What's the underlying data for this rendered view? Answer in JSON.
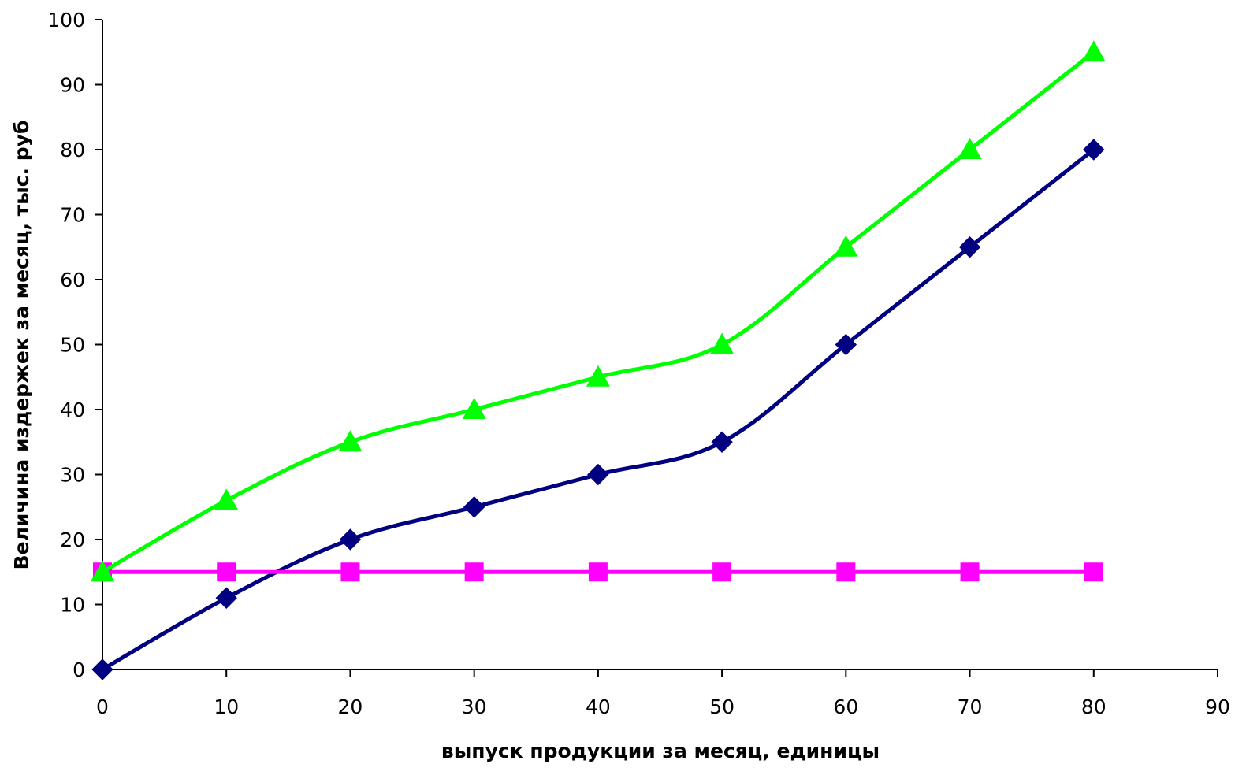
{
  "chart_data": {
    "type": "line",
    "title": "",
    "xlabel": "выпуск продукции за месяц, единицы",
    "ylabel": "Величина издержек за месяц, тыс. руб",
    "xlim": [
      0,
      90
    ],
    "ylim": [
      0,
      100
    ],
    "x_ticks": [
      "0",
      "10",
      "20",
      "30",
      "40",
      "50",
      "60",
      "70",
      "80",
      "90"
    ],
    "y_ticks": [
      "0",
      "10",
      "20",
      "30",
      "40",
      "50",
      "60",
      "70",
      "80",
      "90",
      "100"
    ],
    "grid": false,
    "legend": "none",
    "x": [
      0,
      10,
      20,
      30,
      40,
      50,
      60,
      70,
      80
    ],
    "series": [
      {
        "values": [
          0,
          11,
          20,
          25,
          30,
          35,
          50,
          65,
          80
        ],
        "color": "#000080",
        "marker": "diamond"
      },
      {
        "values": [
          15,
          15,
          15,
          15,
          15,
          15,
          15,
          15,
          15
        ],
        "color": "#ff00ff",
        "marker": "square"
      },
      {
        "values": [
          15,
          26,
          35,
          40,
          45,
          50,
          65,
          80,
          95
        ],
        "color": "#00ff00",
        "marker": "triangle"
      }
    ]
  }
}
